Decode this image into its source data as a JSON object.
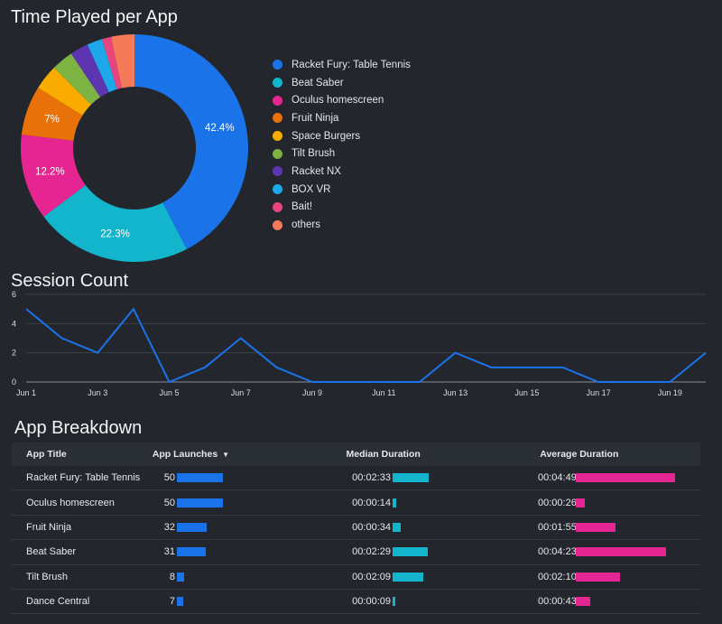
{
  "donut": {
    "title": "Time Played per App",
    "labels": [
      "Racket Fury: Table Tennis",
      "Beat Saber",
      "Oculus homescreen",
      "Fruit Ninja",
      "Space Burgers",
      "Tilt Brush",
      "Racket NX",
      "BOX VR",
      "Bait!",
      "others"
    ],
    "colors": [
      "#1a73e8",
      "#12b5cb",
      "#e52592",
      "#e8710a",
      "#f9ab00",
      "#7cb342",
      "#5e35b1",
      "#1ea7e9",
      "#e8457f",
      "#f47a59"
    ],
    "slice_labels": [
      "42.4%",
      "22.3%",
      "12.2%",
      "7%",
      "",
      "",
      "",
      "",
      "",
      ""
    ]
  },
  "line": {
    "title": "Session Count",
    "line_color": "#1a73e8"
  },
  "table": {
    "title": "App Breakdown",
    "headers": {
      "app_title": "App Title",
      "app_launches": "App Launches",
      "sort_icon": "▼",
      "median_duration": "Median Duration",
      "average_duration": "Average Duration"
    },
    "colors": {
      "launches": "#1a73e8",
      "median": "#12b5cb",
      "average": "#e52592"
    },
    "rows": [
      {
        "title": "Racket Fury: Table Tennis",
        "launches": "50",
        "launches_value": 50,
        "median": "00:02:33",
        "median_sec": 153,
        "average": "00:04:49",
        "average_sec": 289
      },
      {
        "title": "Oculus homescreen",
        "launches": "50",
        "launches_value": 50,
        "median": "00:00:14",
        "median_sec": 14,
        "average": "00:00:26",
        "average_sec": 26
      },
      {
        "title": "Fruit Ninja",
        "launches": "32",
        "launches_value": 32,
        "median": "00:00:34",
        "median_sec": 34,
        "average": "00:01:55",
        "average_sec": 115
      },
      {
        "title": "Beat Saber",
        "launches": "31",
        "launches_value": 31,
        "median": "00:02:29",
        "median_sec": 149,
        "average": "00:04:23",
        "average_sec": 263
      },
      {
        "title": "Tilt Brush",
        "launches": "8",
        "launches_value": 8,
        "median": "00:02:09",
        "median_sec": 129,
        "average": "00:02:10",
        "average_sec": 130
      },
      {
        "title": "Dance Central",
        "launches": "7",
        "launches_value": 7,
        "median": "00:00:09",
        "median_sec": 9,
        "average": "00:00:43",
        "average_sec": 43
      }
    ]
  },
  "chart_data": [
    {
      "type": "pie",
      "title": "Time Played per App",
      "categories": [
        "Racket Fury: Table Tennis",
        "Beat Saber",
        "Oculus homescreen",
        "Fruit Ninja",
        "Space Burgers",
        "Tilt Brush",
        "Racket NX",
        "BOX VR",
        "Bait!",
        "others"
      ],
      "values": [
        42.4,
        22.3,
        12.2,
        7.0,
        3.6,
        3.1,
        2.6,
        2.2,
        1.3,
        3.3
      ],
      "donut": true,
      "legend": "right"
    },
    {
      "type": "line",
      "title": "Session Count",
      "x": [
        "Jun 1",
        "Jun 2",
        "Jun 3",
        "Jun 4",
        "Jun 5",
        "Jun 6",
        "Jun 7",
        "Jun 8",
        "Jun 9",
        "Jun 10",
        "Jun 11",
        "Jun 12",
        "Jun 13",
        "Jun 14",
        "Jun 15",
        "Jun 16",
        "Jun 17",
        "Jun 18",
        "Jun 19",
        "Jun 20"
      ],
      "xticks": [
        "Jun 1",
        "Jun 3",
        "Jun 5",
        "Jun 7",
        "Jun 9",
        "Jun 11",
        "Jun 13",
        "Jun 15",
        "Jun 17",
        "Jun 19"
      ],
      "values": [
        5,
        3,
        2,
        5,
        0,
        1,
        3,
        1,
        0,
        0,
        0,
        0,
        2,
        1,
        1,
        1,
        0,
        0,
        0,
        2
      ],
      "yticks": [
        "0",
        "2",
        "4",
        "6"
      ],
      "ylim": [
        0,
        6
      ],
      "grid": true
    },
    {
      "type": "table",
      "title": "App Breakdown",
      "columns": [
        "App Title",
        "App Launches",
        "Median Duration",
        "Average Duration"
      ]
    }
  ]
}
